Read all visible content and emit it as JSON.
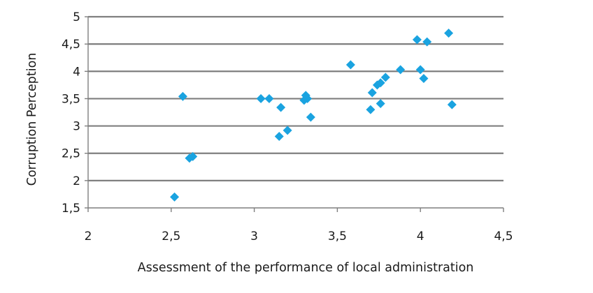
{
  "chart_data": {
    "type": "scatter",
    "title": "",
    "xlabel": "Assessment of the performance of local administration",
    "ylabel": "Corruption Perception",
    "xlim": [
      2,
      4.5
    ],
    "ylim": [
      1.5,
      5
    ],
    "x_ticks": [
      "2",
      "2,5",
      "3",
      "3,5",
      "4",
      "4,5"
    ],
    "y_ticks": [
      "1,5",
      "2",
      "2,5",
      "3",
      "3,5",
      "4",
      "4,5",
      "5"
    ],
    "grid": "horizontal",
    "legend": "none",
    "marker": "diamond",
    "marker_color": "#1aa3e0",
    "gridline_color": "#7f7f7f",
    "points": [
      {
        "x": 2.52,
        "y": 1.7
      },
      {
        "x": 2.57,
        "y": 3.54
      },
      {
        "x": 2.61,
        "y": 2.41
      },
      {
        "x": 2.63,
        "y": 2.44
      },
      {
        "x": 3.04,
        "y": 3.5
      },
      {
        "x": 3.09,
        "y": 3.5
      },
      {
        "x": 3.15,
        "y": 2.81
      },
      {
        "x": 3.16,
        "y": 3.34
      },
      {
        "x": 3.2,
        "y": 2.92
      },
      {
        "x": 3.3,
        "y": 3.47
      },
      {
        "x": 3.31,
        "y": 3.56
      },
      {
        "x": 3.32,
        "y": 3.5
      },
      {
        "x": 3.34,
        "y": 3.16
      },
      {
        "x": 3.58,
        "y": 4.12
      },
      {
        "x": 3.7,
        "y": 3.3
      },
      {
        "x": 3.71,
        "y": 3.61
      },
      {
        "x": 3.74,
        "y": 3.75
      },
      {
        "x": 3.76,
        "y": 3.79
      },
      {
        "x": 3.76,
        "y": 3.41
      },
      {
        "x": 3.79,
        "y": 3.89
      },
      {
        "x": 3.88,
        "y": 4.03
      },
      {
        "x": 3.98,
        "y": 4.58
      },
      {
        "x": 4.0,
        "y": 4.03
      },
      {
        "x": 4.02,
        "y": 3.87
      },
      {
        "x": 4.04,
        "y": 4.54
      },
      {
        "x": 4.17,
        "y": 4.7
      },
      {
        "x": 4.19,
        "y": 3.39
      }
    ]
  }
}
